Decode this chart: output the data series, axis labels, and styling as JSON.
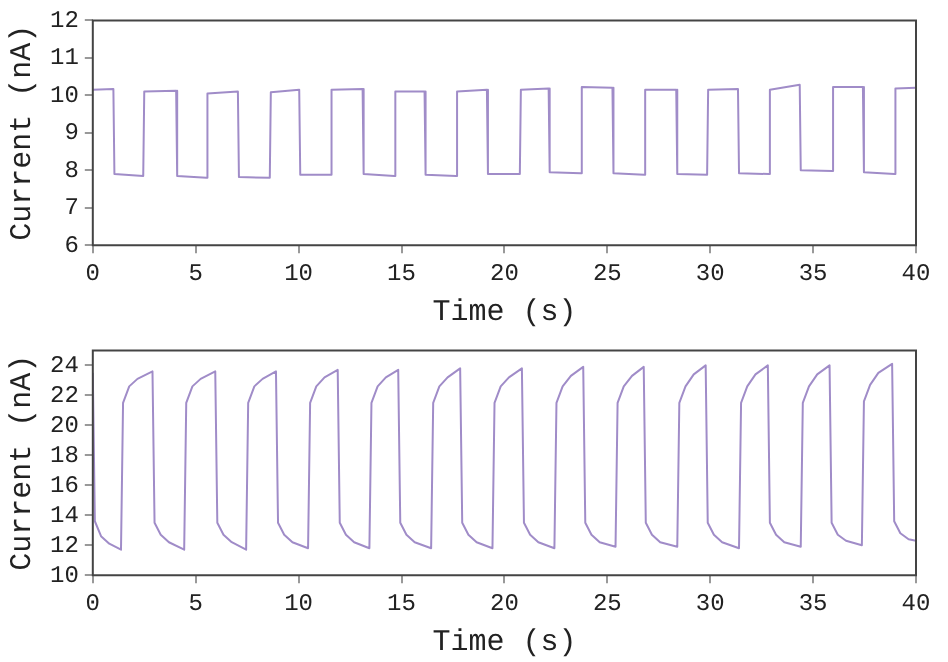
{
  "chart_data": [
    {
      "type": "line",
      "xlabel": "Time (s)",
      "ylabel": "Current (nA)",
      "color": "#a08cc8",
      "xlim": [
        0,
        40
      ],
      "xticks": [
        0,
        5,
        10,
        15,
        20,
        25,
        30,
        35,
        40
      ],
      "ylim": [
        6,
        12
      ],
      "yticks": [
        6,
        7,
        8,
        9,
        10,
        11,
        12
      ],
      "x": [
        0,
        1.0,
        1.05,
        2.45,
        2.5,
        4.05,
        4.1,
        5.52,
        5.57,
        7.05,
        7.1,
        8.6,
        8.65,
        10.03,
        10.08,
        11.55,
        11.6,
        13.11,
        13.16,
        14.65,
        14.7,
        16.12,
        16.17,
        17.65,
        17.7,
        19.15,
        19.2,
        20.75,
        20.8,
        22.15,
        22.2,
        23.71,
        23.76,
        25.25,
        25.3,
        26.79,
        26.84,
        28.35,
        28.4,
        29.85,
        29.9,
        31.35,
        31.4,
        32.85,
        32.9,
        34.35,
        34.4,
        35.92,
        35.97,
        37.42,
        37.47,
        38.95,
        39.0,
        40
      ],
      "values": [
        10.15,
        10.17,
        7.9,
        7.85,
        10.1,
        10.12,
        7.85,
        7.8,
        10.05,
        10.1,
        7.82,
        7.8,
        10.08,
        10.15,
        7.88,
        7.88,
        10.15,
        10.17,
        7.9,
        7.85,
        10.1,
        10.1,
        7.88,
        7.85,
        10.1,
        10.15,
        7.9,
        7.9,
        10.15,
        10.18,
        7.95,
        7.92,
        10.22,
        10.2,
        7.92,
        7.88,
        10.15,
        10.15,
        7.9,
        7.88,
        10.15,
        10.17,
        7.92,
        7.9,
        10.15,
        10.28,
        8.0,
        7.98,
        10.22,
        10.22,
        7.95,
        7.9,
        10.18,
        10.2
      ]
    },
    {
      "type": "line",
      "xlabel": "Time (s)",
      "ylabel": "Current (nA)",
      "color": "#a08cc8",
      "xlim": [
        0,
        40
      ],
      "xticks": [
        0,
        5,
        10,
        15,
        20,
        25,
        30,
        35,
        40
      ],
      "ylim": [
        10,
        25
      ],
      "yticks": [
        10,
        12,
        14,
        16,
        18,
        20,
        22,
        24
      ],
      "x": [
        0,
        0.1,
        0.4,
        0.8,
        1.37,
        1.47,
        1.77,
        2.17,
        2.9,
        3.0,
        3.3,
        3.7,
        4.44,
        4.54,
        4.84,
        5.24,
        5.95,
        6.05,
        6.35,
        6.75,
        7.45,
        7.55,
        7.85,
        8.25,
        8.9,
        9.0,
        9.3,
        9.7,
        10.46,
        10.56,
        10.86,
        11.26,
        11.9,
        12.0,
        12.3,
        12.7,
        13.44,
        13.54,
        13.84,
        14.24,
        14.84,
        14.94,
        15.24,
        15.64,
        16.44,
        16.54,
        16.84,
        17.24,
        17.85,
        17.95,
        18.25,
        18.65,
        19.42,
        19.52,
        19.82,
        20.22,
        20.85,
        20.95,
        21.25,
        21.65,
        22.43,
        22.53,
        22.83,
        23.23,
        23.83,
        23.93,
        24.23,
        24.63,
        25.4,
        25.5,
        25.8,
        26.2,
        26.77,
        26.87,
        27.17,
        27.57,
        28.4,
        28.5,
        28.8,
        29.2,
        29.78,
        29.88,
        30.18,
        30.58,
        31.4,
        31.5,
        31.8,
        32.2,
        32.8,
        32.9,
        33.2,
        33.6,
        34.4,
        34.5,
        34.8,
        35.2,
        35.8,
        35.9,
        36.2,
        36.6,
        37.37,
        37.47,
        37.77,
        38.17,
        38.84,
        38.94,
        39.24,
        39.64,
        40
      ],
      "values": [
        23.5,
        13.6,
        12.6,
        12.1,
        11.7,
        21.5,
        22.6,
        23.1,
        23.6,
        13.5,
        12.7,
        12.2,
        11.7,
        21.5,
        22.6,
        23.1,
        23.6,
        13.5,
        12.7,
        12.2,
        11.7,
        21.5,
        22.6,
        23.1,
        23.6,
        13.5,
        12.7,
        12.2,
        11.8,
        21.5,
        22.6,
        23.2,
        23.7,
        13.5,
        12.7,
        12.2,
        11.8,
        21.5,
        22.6,
        23.2,
        23.7,
        13.5,
        12.7,
        12.2,
        11.8,
        21.5,
        22.6,
        23.2,
        23.8,
        13.5,
        12.7,
        12.2,
        11.8,
        21.5,
        22.6,
        23.2,
        23.8,
        13.5,
        12.7,
        12.2,
        11.8,
        21.5,
        22.6,
        23.3,
        23.9,
        13.5,
        12.7,
        12.2,
        11.9,
        21.5,
        22.6,
        23.3,
        23.9,
        13.5,
        12.7,
        12.2,
        11.9,
        21.5,
        22.6,
        23.4,
        24.0,
        13.5,
        12.7,
        12.2,
        11.8,
        21.5,
        22.6,
        23.4,
        24.0,
        13.5,
        12.7,
        12.2,
        11.9,
        21.5,
        22.6,
        23.4,
        24.0,
        13.5,
        12.7,
        12.3,
        12.0,
        21.6,
        22.7,
        23.5,
        24.1,
        13.6,
        12.8,
        12.4,
        12.3
      ]
    }
  ]
}
